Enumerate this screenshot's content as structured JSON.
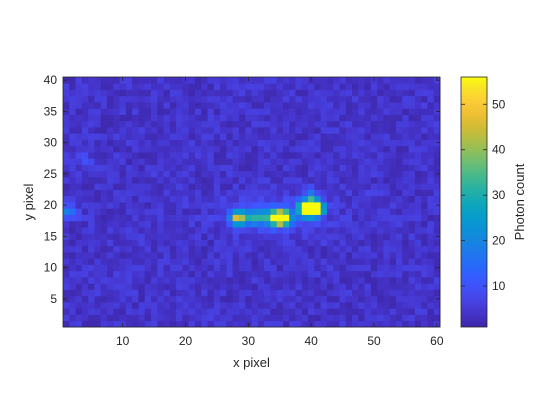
{
  "chart_data": {
    "type": "heatmap",
    "title": "",
    "xlabel": "x pixel",
    "ylabel": "y pixel",
    "xlim": [
      0.5,
      60.5
    ],
    "ylim": [
      0.5,
      40.5
    ],
    "y_direction": "normal",
    "x_ticks": [
      10,
      20,
      30,
      40,
      50,
      60
    ],
    "y_ticks": [
      5,
      10,
      15,
      20,
      25,
      30,
      35,
      40
    ],
    "grid": false,
    "colormap": "parula",
    "colorbar": {
      "label": "Photon count",
      "limits": [
        1,
        56
      ],
      "ticks": [
        10,
        20,
        30,
        40,
        50
      ],
      "placement": "right"
    },
    "background_level": 4,
    "hotspots": [
      {
        "x": 28,
        "y": 18,
        "value": 30
      },
      {
        "x": 29,
        "y": 18,
        "value": 27
      },
      {
        "x": 31,
        "y": 18,
        "value": 18
      },
      {
        "x": 32,
        "y": 18,
        "value": 16
      },
      {
        "x": 35,
        "y": 18,
        "value": 48
      },
      {
        "x": 34,
        "y": 18,
        "value": 34
      },
      {
        "x": 36,
        "y": 18,
        "value": 30
      },
      {
        "x": 40,
        "y": 19.5,
        "value": 56
      },
      {
        "x": 39,
        "y": 19.5,
        "value": 47
      },
      {
        "x": 41,
        "y": 19.5,
        "value": 44
      },
      {
        "x": 40,
        "y": 21.5,
        "value": 18
      },
      {
        "x": 1,
        "y": 19,
        "value": 16
      },
      {
        "x": 2,
        "y": 19,
        "value": 11
      },
      {
        "x": 4,
        "y": 27,
        "value": 10
      },
      {
        "x": 49,
        "y": 21,
        "value": 7
      }
    ]
  }
}
